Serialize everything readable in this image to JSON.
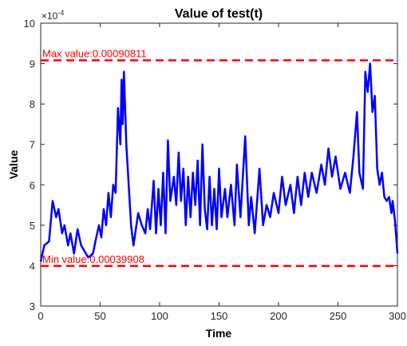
{
  "chart_data": {
    "type": "line",
    "title": "Value of test(t)",
    "x_label": "Time",
    "y_label": "Value",
    "y_multiplier_base": "×10",
    "y_multiplier_exponent": "-4",
    "x": [
      0,
      3,
      7,
      10,
      13,
      15,
      18,
      20,
      23,
      25,
      28,
      31,
      34,
      38,
      40,
      44,
      46,
      49,
      51,
      53,
      55,
      57,
      59,
      61,
      63,
      65,
      67,
      68,
      69,
      70,
      72,
      74,
      76,
      78,
      80,
      82,
      85,
      88,
      90,
      92,
      95,
      97,
      99,
      101,
      103,
      105,
      107,
      109,
      112,
      114,
      116,
      118,
      120,
      122,
      124,
      126,
      128,
      130,
      132,
      134,
      136,
      138,
      140,
      142,
      144,
      146,
      148,
      150,
      152,
      155,
      157,
      160,
      163,
      165,
      168,
      172,
      175,
      177,
      180,
      184,
      187,
      190,
      193,
      196,
      200,
      203,
      206,
      210,
      213,
      216,
      219,
      222,
      225,
      228,
      232,
      236,
      239,
      242,
      245,
      248,
      252,
      256,
      260,
      263,
      266,
      268,
      271,
      273,
      275,
      277,
      279,
      281,
      283,
      285,
      287,
      289,
      291,
      293,
      295,
      296,
      298,
      300
    ],
    "series": [
      {
        "name": "test",
        "color": "#0000ff",
        "values": [
          4.1,
          4.5,
          4.6,
          5.6,
          5.2,
          5.4,
          4.8,
          5.0,
          4.5,
          4.8,
          4.3,
          4.9,
          4.5,
          4.3,
          4.2,
          4.3,
          4.6,
          5.0,
          4.7,
          5.4,
          5.0,
          5.8,
          5.2,
          6.0,
          5.8,
          7.9,
          7.0,
          8.6,
          7.5,
          8.8,
          7.0,
          6.0,
          5.0,
          4.5,
          4.9,
          5.3,
          5.0,
          4.8,
          5.4,
          4.9,
          6.1,
          4.8,
          5.9,
          5.0,
          6.3,
          4.8,
          7.1,
          5.6,
          6.2,
          5.5,
          6.8,
          5.6,
          6.4,
          5.0,
          6.2,
          5.2,
          6.3,
          5.5,
          6.6,
          5.0,
          7.0,
          5.4,
          4.9,
          6.2,
          5.0,
          5.9,
          4.9,
          6.4,
          5.2,
          5.9,
          5.2,
          6.0,
          5.0,
          6.5,
          5.2,
          7.2,
          5.0,
          5.7,
          4.8,
          6.4,
          5.0,
          5.5,
          5.2,
          5.8,
          5.3,
          6.2,
          5.5,
          6.0,
          5.3,
          6.2,
          5.5,
          6.3,
          5.7,
          6.3,
          5.8,
          6.5,
          6.0,
          6.9,
          6.2,
          6.7,
          5.9,
          6.3,
          5.8,
          6.7,
          7.8,
          6.3,
          5.9,
          8.8,
          8.3,
          9.0,
          7.8,
          8.2,
          6.4,
          6.0,
          6.3,
          5.7,
          5.6,
          5.7,
          5.3,
          5.6,
          5.1,
          4.3
        ]
      }
    ],
    "hlines": [
      {
        "value": 9.0811,
        "label": "Max value:0.00090811",
        "color": "#ff0000"
      },
      {
        "value": 3.9908,
        "label": "Min value:0.00039908",
        "color": "#ff0000"
      }
    ],
    "xlim": [
      0,
      300
    ],
    "xticks": [
      0,
      50,
      100,
      150,
      200,
      250,
      300
    ],
    "ylim": [
      3,
      10
    ],
    "yticks": [
      3,
      4,
      5,
      6,
      7,
      8,
      9,
      10
    ],
    "grid": false
  }
}
